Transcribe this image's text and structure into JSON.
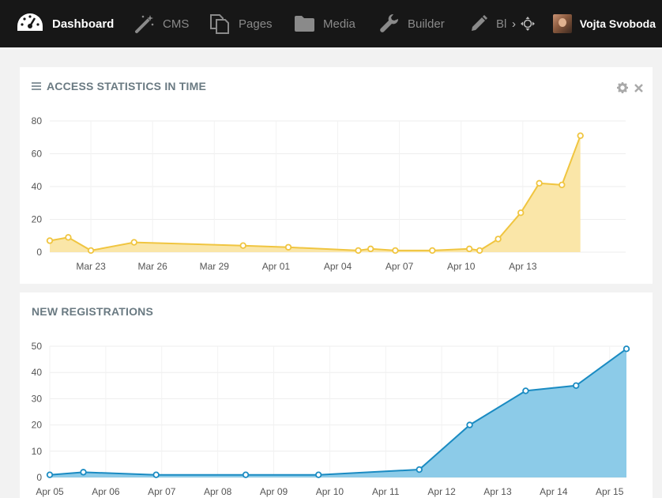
{
  "nav": {
    "items": [
      {
        "label": "Dashboard"
      },
      {
        "label": "CMS"
      },
      {
        "label": "Pages"
      },
      {
        "label": "Media"
      },
      {
        "label": "Builder"
      },
      {
        "label": "Bl"
      }
    ],
    "more_glyph": "›",
    "user_name": "Vojta Svoboda"
  },
  "panels": {
    "access": {
      "title": "ACCESS STATISTICS IN TIME"
    },
    "registrations": {
      "title": "NEW REGISTRATIONS"
    }
  },
  "colors": {
    "topbar": "#171717",
    "access_line": "#f0c540",
    "access_fill": "#fae6a8",
    "reg_line": "#1a8bc2",
    "reg_fill": "#8ccbe8"
  },
  "chart_data": [
    {
      "type": "area",
      "title": "ACCESS STATISTICS IN TIME",
      "ylim": [
        0,
        80
      ],
      "yticks": [
        0,
        20,
        40,
        60,
        80
      ],
      "xlim": [
        0,
        28
      ],
      "xticks": [
        {
          "x": 2,
          "label": "Mar 23"
        },
        {
          "x": 5,
          "label": "Mar 26"
        },
        {
          "x": 8,
          "label": "Mar 29"
        },
        {
          "x": 11,
          "label": "Apr 01"
        },
        {
          "x": 14,
          "label": "Apr 04"
        },
        {
          "x": 17,
          "label": "Apr 07"
        },
        {
          "x": 20,
          "label": "Apr 10"
        },
        {
          "x": 23,
          "label": "Apr 13"
        }
      ],
      "points": [
        {
          "x": 0,
          "y": 7
        },
        {
          "x": 0.9,
          "y": 9
        },
        {
          "x": 2,
          "y": 1
        },
        {
          "x": 4.1,
          "y": 6
        },
        {
          "x": 9.4,
          "y": 4
        },
        {
          "x": 11.6,
          "y": 3
        },
        {
          "x": 15,
          "y": 1
        },
        {
          "x": 15.6,
          "y": 2
        },
        {
          "x": 16.8,
          "y": 1
        },
        {
          "x": 18.6,
          "y": 1
        },
        {
          "x": 20.4,
          "y": 2
        },
        {
          "x": 20.9,
          "y": 1
        },
        {
          "x": 21.8,
          "y": 8
        },
        {
          "x": 22.9,
          "y": 24
        },
        {
          "x": 23.8,
          "y": 42
        },
        {
          "x": 24.9,
          "y": 41
        },
        {
          "x": 25.8,
          "y": 71
        }
      ],
      "grid": true
    },
    {
      "type": "area",
      "title": "NEW REGISTRATIONS",
      "ylim": [
        0,
        50
      ],
      "yticks": [
        0,
        10,
        20,
        30,
        40,
        50
      ],
      "xlim": [
        0,
        10.3
      ],
      "xticks": [
        {
          "x": 0,
          "label": "Apr 05"
        },
        {
          "x": 1,
          "label": "Apr 06"
        },
        {
          "x": 2,
          "label": "Apr 07"
        },
        {
          "x": 3,
          "label": "Apr 08"
        },
        {
          "x": 4,
          "label": "Apr 09"
        },
        {
          "x": 5,
          "label": "Apr 10"
        },
        {
          "x": 6,
          "label": "Apr 11"
        },
        {
          "x": 7,
          "label": "Apr 12"
        },
        {
          "x": 8,
          "label": "Apr 13"
        },
        {
          "x": 9,
          "label": "Apr 14"
        },
        {
          "x": 10,
          "label": "Apr 15"
        }
      ],
      "points": [
        {
          "x": 0,
          "y": 1
        },
        {
          "x": 0.6,
          "y": 2
        },
        {
          "x": 1.9,
          "y": 1
        },
        {
          "x": 3.5,
          "y": 1
        },
        {
          "x": 4.8,
          "y": 1
        },
        {
          "x": 6.6,
          "y": 3
        },
        {
          "x": 7.5,
          "y": 20
        },
        {
          "x": 8.5,
          "y": 33
        },
        {
          "x": 9.4,
          "y": 35
        },
        {
          "x": 10.3,
          "y": 49
        }
      ],
      "grid": true
    }
  ]
}
